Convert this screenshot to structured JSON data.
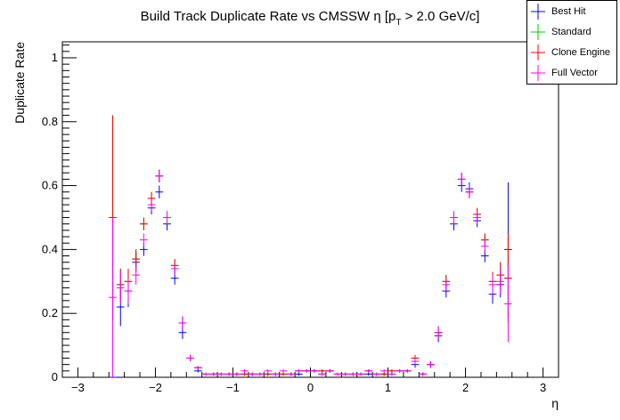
{
  "chart_data": {
    "type": "scatter",
    "title": "Build Track Duplicate Rate vs CMSSW η [p_T > 2.0 GeV/c]",
    "title_parts": {
      "main": "Build Track Duplicate Rate vs CMSSW η [p",
      "sub": "T",
      "rest": " > 2.0 GeV/c]"
    },
    "xlabel": "η",
    "ylabel": "Duplicate Rate",
    "xlim": [
      -3.2,
      3.2
    ],
    "ylim": [
      0,
      1.05
    ],
    "xticks": [
      -3,
      -2,
      -1,
      0,
      1,
      2,
      3
    ],
    "xtick_labels": [
      "−3",
      "−2",
      "−1",
      "0",
      "1",
      "2",
      "3"
    ],
    "yticks": [
      0,
      0.2,
      0.4,
      0.6,
      0.8,
      1
    ],
    "ytick_labels": [
      "0",
      "0.2",
      "0.4",
      "0.6",
      "0.8",
      "1"
    ],
    "bin_half_width": 0.05,
    "legend_position": "top-right",
    "series": [
      {
        "name": "Best Hit",
        "color": "#0000ff",
        "x": [
          -2.55,
          -2.45,
          -2.35,
          -2.25,
          -2.15,
          -2.05,
          -1.95,
          -1.85,
          -1.75,
          -1.65,
          -1.55,
          -1.45,
          -1.35,
          -1.25,
          -1.15,
          -1.05,
          -0.95,
          -0.85,
          -0.75,
          -0.65,
          -0.55,
          -0.45,
          -0.35,
          -0.25,
          -0.15,
          -0.05,
          0.05,
          0.15,
          0.25,
          0.35,
          0.45,
          0.55,
          0.65,
          0.75,
          0.85,
          0.95,
          1.05,
          1.15,
          1.25,
          1.35,
          1.45,
          1.55,
          1.65,
          1.75,
          1.85,
          1.95,
          2.05,
          2.15,
          2.25,
          2.35,
          2.45,
          2.55
        ],
        "y": [
          0.0,
          0.22,
          0.27,
          0.36,
          0.4,
          0.53,
          0.58,
          0.48,
          0.31,
          0.14,
          0.06,
          0.02,
          0.01,
          0.01,
          0.01,
          0.01,
          0.01,
          0.01,
          0.01,
          0.01,
          0.01,
          0.01,
          0.01,
          0.01,
          0.01,
          0.02,
          0.02,
          0.01,
          0.02,
          0.01,
          0.01,
          0.01,
          0.01,
          0.01,
          0.01,
          0.01,
          0.01,
          0.02,
          0.02,
          0.04,
          0.01,
          0.04,
          0.13,
          0.27,
          0.48,
          0.6,
          0.59,
          0.49,
          0.38,
          0.26,
          0.29,
          0.4
        ],
        "err": [
          0.0,
          0.06,
          0.05,
          0.03,
          0.02,
          0.02,
          0.02,
          0.02,
          0.02,
          0.02,
          0.01,
          0.005,
          0.005,
          0.005,
          0.005,
          0.005,
          0.005,
          0.005,
          0.005,
          0.005,
          0.005,
          0.005,
          0.005,
          0.005,
          0.005,
          0.005,
          0.005,
          0.005,
          0.005,
          0.005,
          0.005,
          0.005,
          0.005,
          0.005,
          0.005,
          0.005,
          0.005,
          0.005,
          0.005,
          0.01,
          0.005,
          0.01,
          0.02,
          0.02,
          0.02,
          0.02,
          0.02,
          0.02,
          0.02,
          0.03,
          0.04,
          0.21
        ]
      },
      {
        "name": "Standard",
        "color": "#00cc00",
        "x": [
          -2.55,
          -2.45,
          -2.35,
          -2.25,
          -2.15,
          -2.05,
          -1.95,
          -1.85,
          -1.75,
          -1.65,
          -1.55,
          -1.45,
          -1.35,
          -1.25,
          -1.15,
          -1.05,
          -0.95,
          -0.85,
          -0.75,
          -0.65,
          -0.55,
          -0.45,
          -0.35,
          -0.25,
          -0.15,
          -0.05,
          0.05,
          0.15,
          0.25,
          0.35,
          0.45,
          0.55,
          0.65,
          0.75,
          0.85,
          0.95,
          1.05,
          1.15,
          1.25,
          1.35,
          1.45,
          1.55,
          1.65,
          1.75,
          1.85,
          1.95,
          2.05,
          2.15,
          2.25,
          2.35,
          2.45,
          2.55
        ],
        "y": [
          0.5,
          0.29,
          0.3,
          0.37,
          0.48,
          0.56,
          0.63,
          0.5,
          0.35,
          0.17,
          0.06,
          0.03,
          0.01,
          0.01,
          0.01,
          0.01,
          0.01,
          0.01,
          0.01,
          0.01,
          0.01,
          0.01,
          0.01,
          0.01,
          0.02,
          0.02,
          0.02,
          0.02,
          0.02,
          0.01,
          0.01,
          0.01,
          0.01,
          0.02,
          0.01,
          0.01,
          0.02,
          0.02,
          0.02,
          0.06,
          0.01,
          0.04,
          0.14,
          0.3,
          0.5,
          0.62,
          0.58,
          0.51,
          0.43,
          0.3,
          0.32,
          0.31
        ],
        "err": [
          0.32,
          0.05,
          0.04,
          0.03,
          0.02,
          0.02,
          0.02,
          0.02,
          0.02,
          0.02,
          0.01,
          0.005,
          0.005,
          0.005,
          0.005,
          0.005,
          0.005,
          0.005,
          0.005,
          0.005,
          0.005,
          0.005,
          0.005,
          0.005,
          0.005,
          0.005,
          0.005,
          0.005,
          0.005,
          0.005,
          0.005,
          0.005,
          0.005,
          0.005,
          0.005,
          0.005,
          0.005,
          0.005,
          0.005,
          0.01,
          0.005,
          0.01,
          0.02,
          0.02,
          0.02,
          0.02,
          0.02,
          0.02,
          0.02,
          0.03,
          0.04,
          0.14
        ]
      },
      {
        "name": "Clone Engine",
        "color": "#ff0000",
        "x": [
          -2.55,
          -2.45,
          -2.35,
          -2.25,
          -2.15,
          -2.05,
          -1.95,
          -1.85,
          -1.75,
          -1.65,
          -1.55,
          -1.45,
          -1.35,
          -1.25,
          -1.15,
          -1.05,
          -0.95,
          -0.85,
          -0.75,
          -0.65,
          -0.55,
          -0.45,
          -0.35,
          -0.25,
          -0.15,
          -0.05,
          0.05,
          0.15,
          0.25,
          0.35,
          0.45,
          0.55,
          0.65,
          0.75,
          0.85,
          0.95,
          1.05,
          1.15,
          1.25,
          1.35,
          1.45,
          1.55,
          1.65,
          1.75,
          1.85,
          1.95,
          2.05,
          2.15,
          2.25,
          2.35,
          2.45,
          2.55
        ],
        "y": [
          0.5,
          0.29,
          0.3,
          0.37,
          0.48,
          0.56,
          0.63,
          0.5,
          0.35,
          0.17,
          0.06,
          0.03,
          0.01,
          0.01,
          0.01,
          0.01,
          0.01,
          0.01,
          0.01,
          0.01,
          0.01,
          0.01,
          0.01,
          0.01,
          0.02,
          0.02,
          0.02,
          0.02,
          0.02,
          0.01,
          0.01,
          0.01,
          0.01,
          0.02,
          0.01,
          0.01,
          0.02,
          0.02,
          0.02,
          0.06,
          0.01,
          0.04,
          0.14,
          0.3,
          0.5,
          0.62,
          0.58,
          0.51,
          0.43,
          0.3,
          0.32,
          0.31
        ],
        "err": [
          0.32,
          0.05,
          0.04,
          0.03,
          0.02,
          0.02,
          0.02,
          0.02,
          0.02,
          0.02,
          0.01,
          0.005,
          0.005,
          0.005,
          0.005,
          0.005,
          0.005,
          0.005,
          0.005,
          0.005,
          0.005,
          0.005,
          0.005,
          0.005,
          0.005,
          0.005,
          0.005,
          0.005,
          0.005,
          0.005,
          0.005,
          0.005,
          0.005,
          0.005,
          0.005,
          0.005,
          0.005,
          0.005,
          0.005,
          0.01,
          0.005,
          0.01,
          0.02,
          0.02,
          0.02,
          0.02,
          0.02,
          0.02,
          0.02,
          0.03,
          0.04,
          0.14
        ]
      },
      {
        "name": "Full Vector",
        "color": "#ff00ff",
        "x": [
          -2.55,
          -2.45,
          -2.35,
          -2.25,
          -2.15,
          -2.05,
          -1.95,
          -1.85,
          -1.75,
          -1.65,
          -1.55,
          -1.45,
          -1.35,
          -1.25,
          -1.15,
          -1.05,
          -0.95,
          -0.85,
          -0.75,
          -0.65,
          -0.55,
          -0.45,
          -0.35,
          -0.25,
          -0.15,
          -0.05,
          0.05,
          0.15,
          0.25,
          0.35,
          0.45,
          0.55,
          0.65,
          0.75,
          0.85,
          0.95,
          1.05,
          1.15,
          1.25,
          1.35,
          1.45,
          1.55,
          1.65,
          1.75,
          1.85,
          1.95,
          2.05,
          2.15,
          2.25,
          2.35,
          2.45,
          2.55
        ],
        "y": [
          0.25,
          0.28,
          0.27,
          0.32,
          0.43,
          0.54,
          0.63,
          0.5,
          0.34,
          0.17,
          0.06,
          0.03,
          0.01,
          0.01,
          0.01,
          0.01,
          0.01,
          0.02,
          0.01,
          0.01,
          0.02,
          0.01,
          0.02,
          0.01,
          0.02,
          0.02,
          0.02,
          0.01,
          0.02,
          0.01,
          0.01,
          0.01,
          0.01,
          0.02,
          0.01,
          0.02,
          0.01,
          0.02,
          0.02,
          0.05,
          0.01,
          0.04,
          0.14,
          0.29,
          0.5,
          0.62,
          0.58,
          0.5,
          0.41,
          0.29,
          0.3,
          0.23
        ],
        "err": [
          0.25,
          0.05,
          0.04,
          0.03,
          0.02,
          0.02,
          0.02,
          0.02,
          0.02,
          0.02,
          0.01,
          0.005,
          0.005,
          0.005,
          0.005,
          0.005,
          0.005,
          0.005,
          0.005,
          0.005,
          0.005,
          0.005,
          0.005,
          0.005,
          0.005,
          0.005,
          0.005,
          0.005,
          0.005,
          0.005,
          0.005,
          0.005,
          0.005,
          0.005,
          0.005,
          0.005,
          0.005,
          0.005,
          0.005,
          0.01,
          0.005,
          0.01,
          0.02,
          0.02,
          0.02,
          0.02,
          0.02,
          0.02,
          0.02,
          0.03,
          0.04,
          0.12
        ]
      }
    ]
  }
}
